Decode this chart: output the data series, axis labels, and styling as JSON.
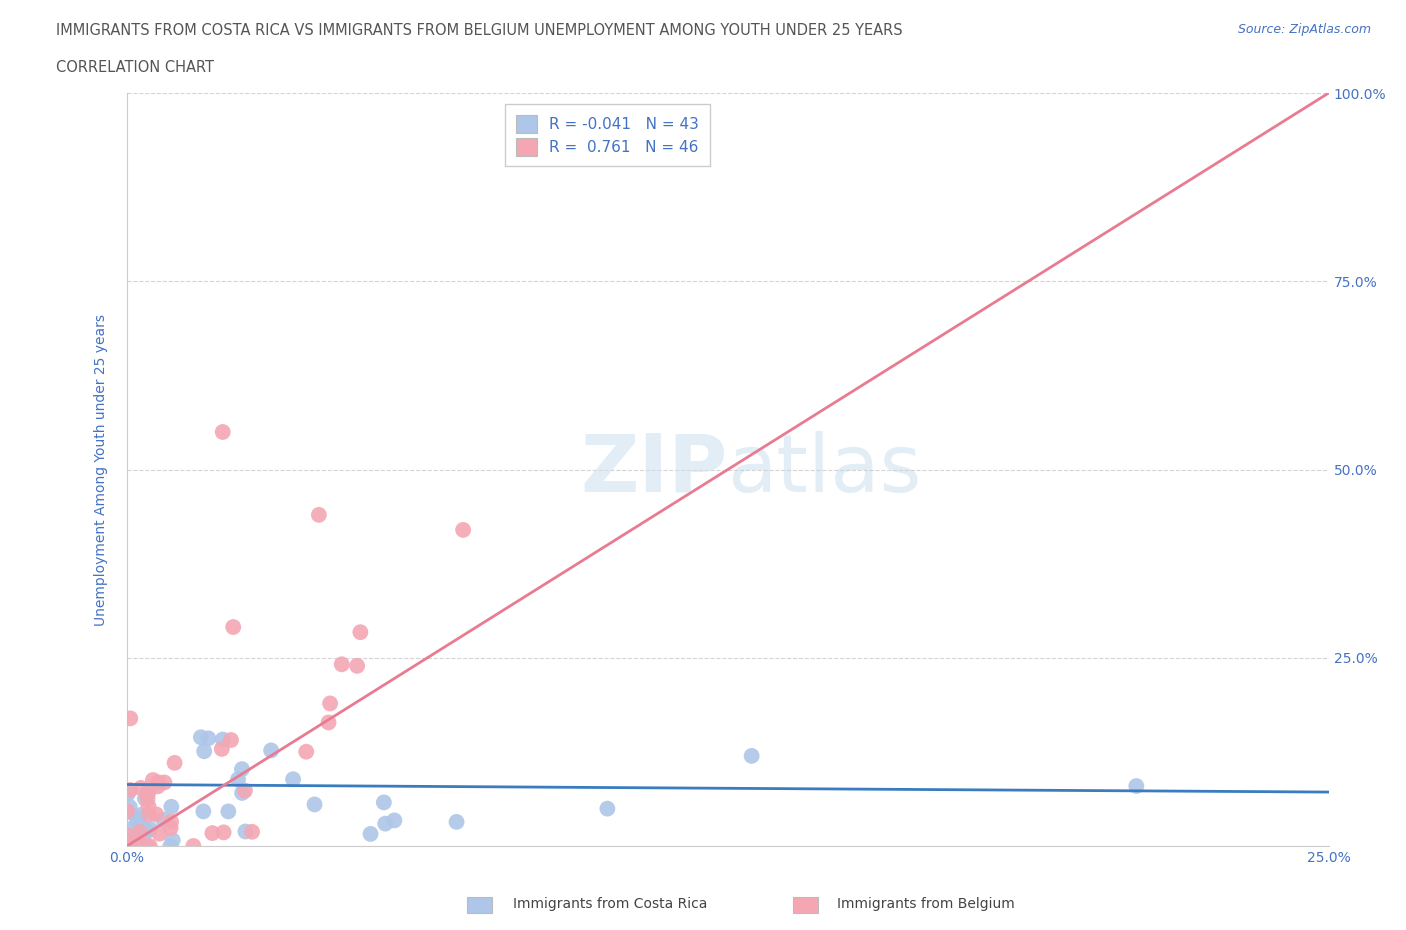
{
  "title_line1": "IMMIGRANTS FROM COSTA RICA VS IMMIGRANTS FROM BELGIUM UNEMPLOYMENT AMONG YOUTH UNDER 25 YEARS",
  "title_line2": "CORRELATION CHART",
  "source_text": "Source: ZipAtlas.com",
  "ylabel": "Unemployment Among Youth under 25 years",
  "xlim": [
    0.0,
    0.25
  ],
  "ylim": [
    0.0,
    1.0
  ],
  "xticks": [
    0.0,
    0.05,
    0.1,
    0.15,
    0.2,
    0.25
  ],
  "yticks": [
    0.0,
    0.25,
    0.5,
    0.75,
    1.0
  ],
  "xticklabels": [
    "0.0%",
    "",
    "",
    "",
    "",
    "25.0%"
  ],
  "right_yticklabels": [
    "",
    "25.0%",
    "50.0%",
    "75.0%",
    "100.0%"
  ],
  "costa_rica_color": "#aec6e8",
  "belgium_color": "#f4a7b3",
  "costa_rica_line_color": "#3a7cbf",
  "belgium_line_color": "#e87b92",
  "costa_rica_R": -0.041,
  "costa_rica_N": 43,
  "belgium_R": 0.761,
  "belgium_N": 46,
  "watermark_zip": "ZIP",
  "watermark_atlas": "atlas",
  "legend_label_cr": "Immigrants from Costa Rica",
  "legend_label_be": "Immigrants from Belgium",
  "grid_color": "#d0d0d0",
  "title_color": "#555555",
  "tick_color": "#4472c4",
  "source_color": "#4472c4"
}
